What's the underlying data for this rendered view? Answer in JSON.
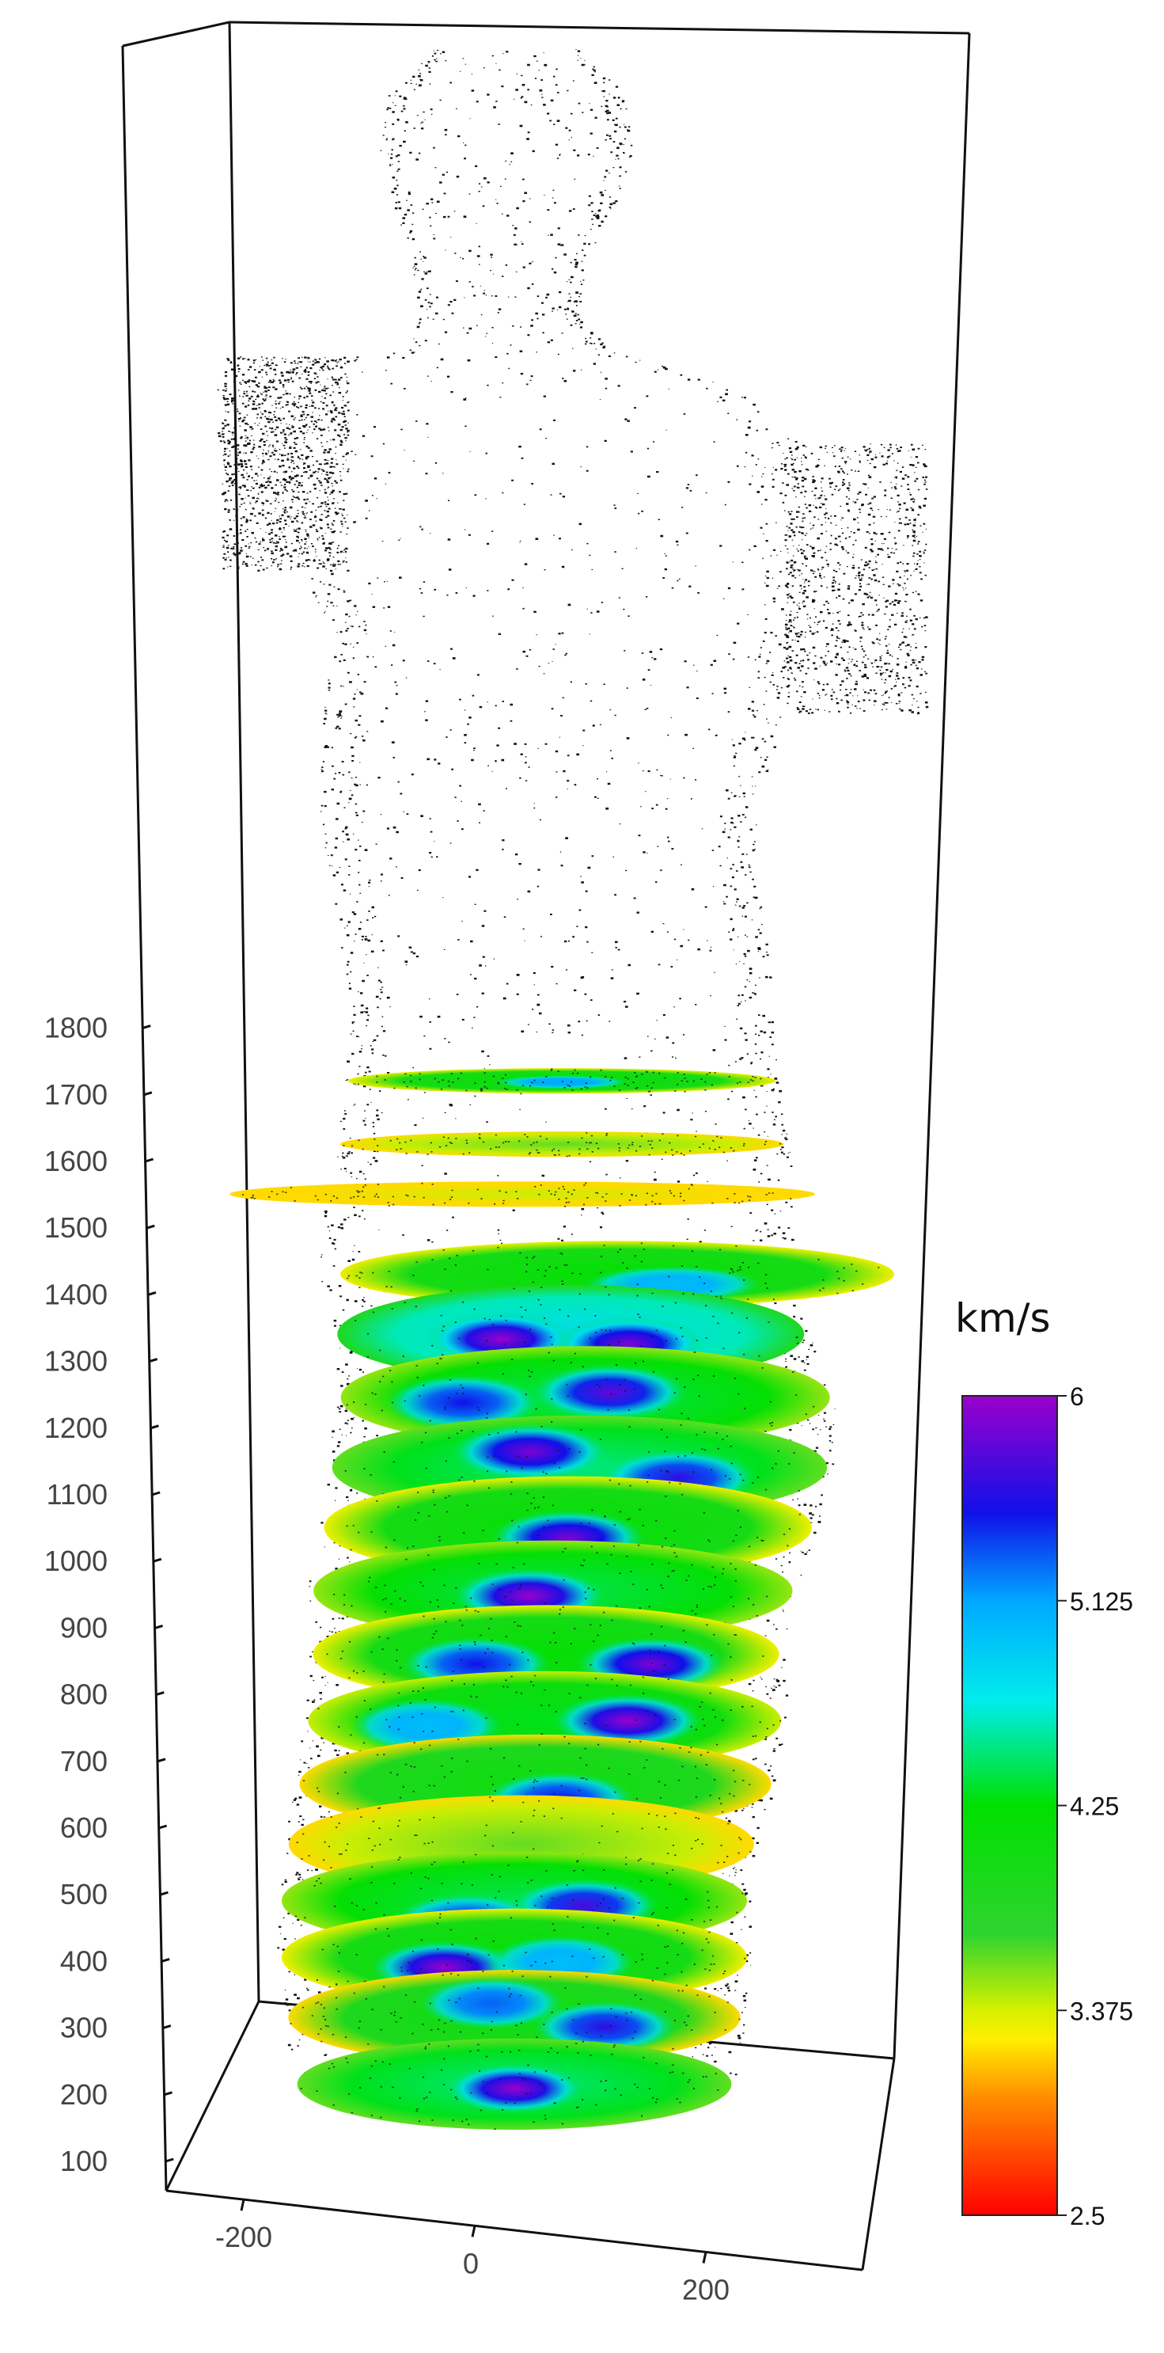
{
  "chart_data": {
    "type": "scatter",
    "title": "",
    "z_axis": {
      "ticks": [
        100,
        200,
        300,
        400,
        500,
        600,
        700,
        800,
        900,
        1000,
        1100,
        1200,
        1300,
        1400,
        1500,
        1600,
        1700,
        1800
      ],
      "tick_labels": [
        "100",
        "200",
        "300",
        "400",
        "500",
        "600",
        "700",
        "800",
        "900",
        "1000",
        "1100",
        "1200",
        "1300",
        "1400",
        "1500",
        "1600",
        "1700",
        "1800"
      ],
      "range": [
        60,
        1860
      ]
    },
    "x_axis": {
      "ticks": [
        -200,
        0,
        200
      ],
      "tick_labels": [
        "-200",
        "0",
        "200"
      ]
    },
    "colorbar": {
      "title": "km/s",
      "min": 2.5,
      "max": 6,
      "tick_values": [
        6,
        5.125,
        4.25,
        3.375,
        2.5
      ],
      "tick_labels": [
        "6",
        "5.125",
        "4.25",
        "3.375",
        "2.5"
      ],
      "stops": [
        {
          "value": 2.5,
          "color": "#ff0000"
        },
        {
          "value": 3.0,
          "color": "#ff8c00"
        },
        {
          "value": 3.25,
          "color": "#ffee00"
        },
        {
          "value": 3.375,
          "color": "#d6f000"
        },
        {
          "value": 3.7,
          "color": "#2fd42f"
        },
        {
          "value": 4.25,
          "color": "#00e000"
        },
        {
          "value": 4.7,
          "color": "#00ecec"
        },
        {
          "value": 5.125,
          "color": "#00a8ff"
        },
        {
          "value": 5.5,
          "color": "#1010e8"
        },
        {
          "value": 6,
          "color": "#9b00cc"
        }
      ]
    },
    "slices": [
      {
        "z": 1720,
        "mean": 4.0,
        "peaks": [
          {
            "dx": 0.0,
            "dy": 0.1,
            "v": 5.1
          }
        ]
      },
      {
        "z": 1625,
        "mean": 3.4,
        "peaks": []
      },
      {
        "z": 1550,
        "mean": 3.2,
        "peaks": []
      },
      {
        "z": 1430,
        "mean": 4.0,
        "peaks": [
          {
            "dx": 0.2,
            "dy": 0.3,
            "v": 5.0
          }
        ]
      },
      {
        "z": 1340,
        "mean": 4.6,
        "peaks": [
          {
            "dx": -0.3,
            "dy": 0.1,
            "v": 6.0
          },
          {
            "dx": 0.25,
            "dy": 0.2,
            "v": 5.9
          }
        ]
      },
      {
        "z": 1245,
        "mean": 4.2,
        "peaks": [
          {
            "dx": 0.1,
            "dy": -0.1,
            "v": 5.8
          },
          {
            "dx": -0.5,
            "dy": 0.1,
            "v": 5.5
          }
        ]
      },
      {
        "z": 1140,
        "mean": 4.3,
        "peaks": [
          {
            "dx": -0.2,
            "dy": -0.3,
            "v": 5.9
          },
          {
            "dx": 0.4,
            "dy": 0.2,
            "v": 5.6
          }
        ]
      },
      {
        "z": 1050,
        "mean": 4.0,
        "peaks": [
          {
            "dx": 0.0,
            "dy": 0.2,
            "v": 5.9
          }
        ]
      },
      {
        "z": 955,
        "mean": 4.2,
        "peaks": [
          {
            "dx": -0.1,
            "dy": 0.1,
            "v": 6.0
          }
        ]
      },
      {
        "z": 860,
        "mean": 4.0,
        "peaks": [
          {
            "dx": -0.3,
            "dy": 0.2,
            "v": 5.5
          },
          {
            "dx": 0.45,
            "dy": 0.2,
            "v": 5.9
          }
        ]
      },
      {
        "z": 760,
        "mean": 4.1,
        "peaks": [
          {
            "dx": 0.35,
            "dy": 0.0,
            "v": 6.0
          },
          {
            "dx": -0.5,
            "dy": 0.1,
            "v": 5.0
          }
        ]
      },
      {
        "z": 665,
        "mean": 3.9,
        "peaks": [
          {
            "dx": 0.1,
            "dy": 0.3,
            "v": 5.5
          }
        ]
      },
      {
        "z": 575,
        "mean": 3.4,
        "peaks": []
      },
      {
        "z": 490,
        "mean": 4.2,
        "peaks": [
          {
            "dx": 0.3,
            "dy": 0.1,
            "v": 5.7
          },
          {
            "dx": -0.2,
            "dy": 0.4,
            "v": 5.4
          }
        ]
      },
      {
        "z": 405,
        "mean": 4.0,
        "peaks": [
          {
            "dx": -0.3,
            "dy": 0.2,
            "v": 6.0
          },
          {
            "dx": 0.2,
            "dy": 0.1,
            "v": 5.0
          }
        ]
      },
      {
        "z": 315,
        "mean": 3.9,
        "peaks": [
          {
            "dx": 0.4,
            "dy": 0.2,
            "v": 5.6
          },
          {
            "dx": -0.1,
            "dy": -0.3,
            "v": 5.3
          }
        ]
      },
      {
        "z": 215,
        "mean": 4.3,
        "peaks": [
          {
            "dx": 0.0,
            "dy": 0.1,
            "v": 6.0
          }
        ]
      }
    ]
  }
}
